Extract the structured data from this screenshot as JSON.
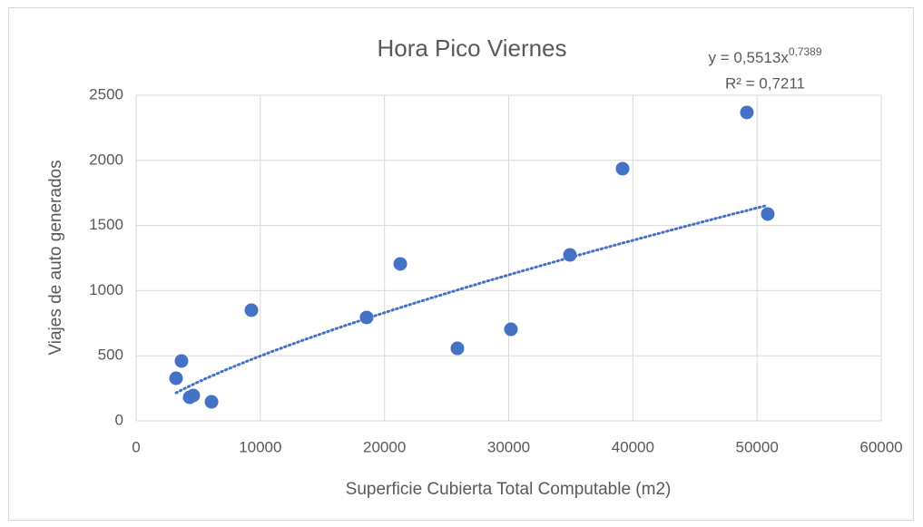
{
  "chart_data": {
    "type": "scatter",
    "title": "Hora Pico Viernes",
    "x_label": "Superficie Cubierta Total Computable (m2)",
    "y_label": "Viajes de auto generados",
    "x": [
      3215,
      3650,
      4310,
      4600,
      6070,
      9280,
      18560,
      21270,
      25870,
      30180,
      34930,
      39170,
      49180,
      50860
    ],
    "series": [
      {
        "name": "Viajes",
        "color": "#4472c4",
        "values": [
          327,
          460,
          181,
          195,
          146,
          850,
          794,
          1205,
          557,
          703,
          1274,
          1936,
          2368,
          1588
        ]
      }
    ],
    "xlim": [
      0,
      60000
    ],
    "xticks": [
      0,
      10000,
      20000,
      30000,
      40000,
      50000,
      60000
    ],
    "ylim": [
      0,
      2500
    ],
    "yticks": [
      0,
      500,
      1000,
      1500,
      2000,
      2500
    ],
    "grid": true,
    "trendline": {
      "type": "power",
      "coefficient": 0.5513,
      "exponent": 0.7389,
      "x_range": [
        3215,
        50860
      ],
      "equation": "y = 0,5513x",
      "equation_exponent": "0,7389",
      "r_squared": "R² = 0,7211"
    }
  }
}
